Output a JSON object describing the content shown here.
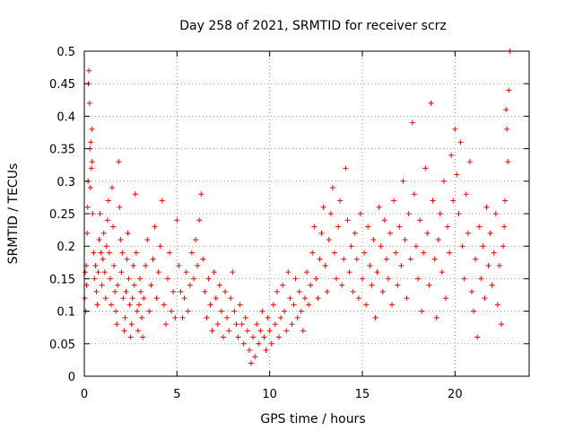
{
  "chart_data": {
    "type": "scatter",
    "title": "Day 258 of 2021, SRMTID for receiver scrz",
    "xlabel": "GPS time / hours",
    "ylabel": "SRMTID / TECUs",
    "xlim": [
      0,
      24
    ],
    "ylim": [
      0,
      0.5
    ],
    "xticks": [
      0,
      5,
      10,
      15,
      20
    ],
    "xtick_labels": [
      "0",
      "5",
      "10",
      "15",
      "20"
    ],
    "yticks": [
      0,
      0.05,
      0.1,
      0.15,
      0.2,
      0.25,
      0.3,
      0.35,
      0.4,
      0.45,
      0.5
    ],
    "ytick_labels": [
      "0",
      "0.05",
      "0.1",
      "0.15",
      "0.2",
      "0.25",
      "0.3",
      "0.35",
      "0.4",
      "0.45",
      "0.5"
    ],
    "grid": true,
    "marker": "plus",
    "color": "#ff0000",
    "series": [
      {
        "name": "SRMTID",
        "points": [
          [
            0.02,
            0.12
          ],
          [
            0.05,
            0.16
          ],
          [
            0.08,
            0.1
          ],
          [
            0.1,
            0.17
          ],
          [
            0.12,
            0.14
          ],
          [
            0.15,
            0.22
          ],
          [
            0.18,
            0.26
          ],
          [
            0.2,
            0.3
          ],
          [
            0.22,
            0.45
          ],
          [
            0.25,
            0.47
          ],
          [
            0.28,
            0.42
          ],
          [
            0.3,
            0.35
          ],
          [
            0.33,
            0.29
          ],
          [
            0.35,
            0.36
          ],
          [
            0.38,
            0.32
          ],
          [
            0.4,
            0.38
          ],
          [
            0.42,
            0.33
          ],
          [
            0.45,
            0.25
          ],
          [
            0.5,
            0.19
          ],
          [
            0.55,
            0.15
          ],
          [
            0.6,
            0.17
          ],
          [
            0.65,
            0.13
          ],
          [
            0.7,
            0.11
          ],
          [
            0.75,
            0.16
          ],
          [
            0.8,
            0.21
          ],
          [
            0.85,
            0.25
          ],
          [
            0.9,
            0.19
          ],
          [
            0.95,
            0.14
          ],
          [
            1.0,
            0.18
          ],
          [
            1.05,
            0.22
          ],
          [
            1.1,
            0.16
          ],
          [
            1.15,
            0.12
          ],
          [
            1.2,
            0.2
          ],
          [
            1.25,
            0.24
          ],
          [
            1.3,
            0.27
          ],
          [
            1.35,
            0.19
          ],
          [
            1.4,
            0.15
          ],
          [
            1.45,
            0.11
          ],
          [
            1.5,
            0.29
          ],
          [
            1.55,
            0.23
          ],
          [
            1.6,
            0.17
          ],
          [
            1.65,
            0.13
          ],
          [
            1.7,
            0.1
          ],
          [
            1.75,
            0.08
          ],
          [
            1.8,
            0.14
          ],
          [
            1.85,
            0.33
          ],
          [
            1.9,
            0.26
          ],
          [
            1.95,
            0.21
          ],
          [
            2.0,
            0.16
          ],
          [
            2.05,
            0.19
          ],
          [
            2.1,
            0.12
          ],
          [
            2.15,
            0.07
          ],
          [
            2.2,
            0.09
          ],
          [
            2.25,
            0.13
          ],
          [
            2.3,
            0.18
          ],
          [
            2.35,
            0.22
          ],
          [
            2.4,
            0.15
          ],
          [
            2.45,
            0.11
          ],
          [
            2.5,
            0.06
          ],
          [
            2.55,
            0.08
          ],
          [
            2.6,
            0.12
          ],
          [
            2.65,
            0.17
          ],
          [
            2.7,
            0.14
          ],
          [
            2.75,
            0.28
          ],
          [
            2.8,
            0.19
          ],
          [
            2.85,
            0.1
          ],
          [
            2.9,
            0.07
          ],
          [
            2.95,
            0.11
          ],
          [
            3.0,
            0.15
          ],
          [
            3.05,
            0.13
          ],
          [
            3.1,
            0.09
          ],
          [
            3.15,
            0.06
          ],
          [
            3.2,
            0.12
          ],
          [
            3.3,
            0.17
          ],
          [
            3.4,
            0.21
          ],
          [
            3.5,
            0.1
          ],
          [
            3.6,
            0.14
          ],
          [
            3.7,
            0.18
          ],
          [
            3.8,
            0.23
          ],
          [
            3.9,
            0.12
          ],
          [
            4.0,
            0.16
          ],
          [
            4.1,
            0.2
          ],
          [
            4.2,
            0.27
          ],
          [
            4.3,
            0.11
          ],
          [
            4.4,
            0.08
          ],
          [
            4.5,
            0.15
          ],
          [
            4.6,
            0.19
          ],
          [
            4.7,
            0.1
          ],
          [
            4.8,
            0.13
          ],
          [
            4.9,
            0.09
          ],
          [
            5.0,
            0.24
          ],
          [
            5.1,
            0.17
          ],
          [
            5.2,
            0.13
          ],
          [
            5.3,
            0.09
          ],
          [
            5.4,
            0.12
          ],
          [
            5.5,
            0.16
          ],
          [
            5.6,
            0.1
          ],
          [
            5.7,
            0.14
          ],
          [
            5.8,
            0.19
          ],
          [
            5.9,
            0.15
          ],
          [
            6.0,
            0.21
          ],
          [
            6.1,
            0.17
          ],
          [
            6.2,
            0.24
          ],
          [
            6.3,
            0.28
          ],
          [
            6.4,
            0.18
          ],
          [
            6.5,
            0.13
          ],
          [
            6.6,
            0.09
          ],
          [
            6.7,
            0.15
          ],
          [
            6.8,
            0.11
          ],
          [
            6.9,
            0.07
          ],
          [
            7.0,
            0.16
          ],
          [
            7.1,
            0.12
          ],
          [
            7.2,
            0.08
          ],
          [
            7.3,
            0.14
          ],
          [
            7.4,
            0.1
          ],
          [
            7.5,
            0.06
          ],
          [
            7.6,
            0.13
          ],
          [
            7.7,
            0.09
          ],
          [
            7.8,
            0.07
          ],
          [
            7.9,
            0.12
          ],
          [
            8.0,
            0.16
          ],
          [
            8.1,
            0.1
          ],
          [
            8.2,
            0.08
          ],
          [
            8.3,
            0.06
          ],
          [
            8.4,
            0.11
          ],
          [
            8.5,
            0.08
          ],
          [
            8.6,
            0.05
          ],
          [
            8.7,
            0.09
          ],
          [
            8.8,
            0.07
          ],
          [
            8.9,
            0.04
          ],
          [
            9.0,
            0.02
          ],
          [
            9.1,
            0.06
          ],
          [
            9.2,
            0.03
          ],
          [
            9.3,
            0.08
          ],
          [
            9.4,
            0.05
          ],
          [
            9.5,
            0.07
          ],
          [
            9.6,
            0.1
          ],
          [
            9.7,
            0.06
          ],
          [
            9.8,
            0.04
          ],
          [
            9.9,
            0.09
          ],
          [
            10.0,
            0.07
          ],
          [
            10.1,
            0.05
          ],
          [
            10.2,
            0.11
          ],
          [
            10.3,
            0.08
          ],
          [
            10.4,
            0.13
          ],
          [
            10.5,
            0.06
          ],
          [
            10.6,
            0.09
          ],
          [
            10.7,
            0.14
          ],
          [
            10.8,
            0.1
          ],
          [
            10.9,
            0.07
          ],
          [
            11.0,
            0.16
          ],
          [
            11.1,
            0.12
          ],
          [
            11.2,
            0.08
          ],
          [
            11.3,
            0.11
          ],
          [
            11.4,
            0.15
          ],
          [
            11.5,
            0.09
          ],
          [
            11.6,
            0.13
          ],
          [
            11.7,
            0.1
          ],
          [
            11.8,
            0.07
          ],
          [
            11.9,
            0.12
          ],
          [
            12.0,
            0.16
          ],
          [
            12.1,
            0.11
          ],
          [
            12.2,
            0.14
          ],
          [
            12.3,
            0.19
          ],
          [
            12.4,
            0.23
          ],
          [
            12.5,
            0.15
          ],
          [
            12.6,
            0.12
          ],
          [
            12.7,
            0.18
          ],
          [
            12.8,
            0.22
          ],
          [
            12.9,
            0.26
          ],
          [
            13.0,
            0.17
          ],
          [
            13.1,
            0.13
          ],
          [
            13.2,
            0.21
          ],
          [
            13.3,
            0.25
          ],
          [
            13.4,
            0.29
          ],
          [
            13.5,
            0.19
          ],
          [
            13.6,
            0.15
          ],
          [
            13.7,
            0.23
          ],
          [
            13.8,
            0.27
          ],
          [
            13.9,
            0.14
          ],
          [
            14.0,
            0.18
          ],
          [
            14.1,
            0.32
          ],
          [
            14.2,
            0.24
          ],
          [
            14.3,
            0.16
          ],
          [
            14.4,
            0.2
          ],
          [
            14.5,
            0.13
          ],
          [
            14.6,
            0.22
          ],
          [
            14.7,
            0.18
          ],
          [
            14.8,
            0.12
          ],
          [
            14.9,
            0.25
          ],
          [
            15.0,
            0.15
          ],
          [
            15.1,
            0.19
          ],
          [
            15.2,
            0.11
          ],
          [
            15.3,
            0.23
          ],
          [
            15.4,
            0.17
          ],
          [
            15.5,
            0.14
          ],
          [
            15.6,
            0.21
          ],
          [
            15.7,
            0.09
          ],
          [
            15.8,
            0.16
          ],
          [
            15.9,
            0.26
          ],
          [
            16.0,
            0.2
          ],
          [
            16.1,
            0.13
          ],
          [
            16.2,
            0.24
          ],
          [
            16.3,
            0.18
          ],
          [
            16.4,
            0.15
          ],
          [
            16.5,
            0.22
          ],
          [
            16.6,
            0.11
          ],
          [
            16.7,
            0.27
          ],
          [
            16.8,
            0.19
          ],
          [
            16.9,
            0.14
          ],
          [
            17.0,
            0.23
          ],
          [
            17.1,
            0.17
          ],
          [
            17.2,
            0.3
          ],
          [
            17.3,
            0.21
          ],
          [
            17.4,
            0.12
          ],
          [
            17.5,
            0.25
          ],
          [
            17.6,
            0.18
          ],
          [
            17.7,
            0.39
          ],
          [
            17.8,
            0.28
          ],
          [
            17.9,
            0.2
          ],
          [
            18.0,
            0.15
          ],
          [
            18.1,
            0.24
          ],
          [
            18.2,
            0.1
          ],
          [
            18.3,
            0.19
          ],
          [
            18.4,
            0.32
          ],
          [
            18.5,
            0.22
          ],
          [
            18.6,
            0.14
          ],
          [
            18.7,
            0.42
          ],
          [
            18.8,
            0.27
          ],
          [
            18.9,
            0.18
          ],
          [
            19.0,
            0.09
          ],
          [
            19.1,
            0.21
          ],
          [
            19.2,
            0.25
          ],
          [
            19.3,
            0.16
          ],
          [
            19.4,
            0.3
          ],
          [
            19.5,
            0.12
          ],
          [
            19.6,
            0.23
          ],
          [
            19.7,
            0.19
          ],
          [
            19.8,
            0.34
          ],
          [
            19.9,
            0.27
          ],
          [
            20.0,
            0.38
          ],
          [
            20.1,
            0.31
          ],
          [
            20.2,
            0.25
          ],
          [
            20.3,
            0.36
          ],
          [
            20.4,
            0.2
          ],
          [
            20.5,
            0.15
          ],
          [
            20.6,
            0.28
          ],
          [
            20.7,
            0.22
          ],
          [
            20.8,
            0.33
          ],
          [
            20.9,
            0.13
          ],
          [
            21.0,
            0.1
          ],
          [
            21.1,
            0.18
          ],
          [
            21.2,
            0.06
          ],
          [
            21.3,
            0.23
          ],
          [
            21.4,
            0.15
          ],
          [
            21.5,
            0.2
          ],
          [
            21.6,
            0.12
          ],
          [
            21.7,
            0.26
          ],
          [
            21.8,
            0.17
          ],
          [
            21.9,
            0.22
          ],
          [
            22.0,
            0.14
          ],
          [
            22.1,
            0.19
          ],
          [
            22.2,
            0.25
          ],
          [
            22.3,
            0.11
          ],
          [
            22.4,
            0.17
          ],
          [
            22.5,
            0.08
          ],
          [
            22.6,
            0.2
          ],
          [
            22.7,
            0.27
          ],
          [
            22.8,
            0.38
          ],
          [
            22.9,
            0.44
          ],
          [
            22.95,
            0.5
          ],
          [
            22.85,
            0.33
          ],
          [
            22.75,
            0.41
          ],
          [
            22.65,
            0.23
          ]
        ]
      }
    ]
  }
}
